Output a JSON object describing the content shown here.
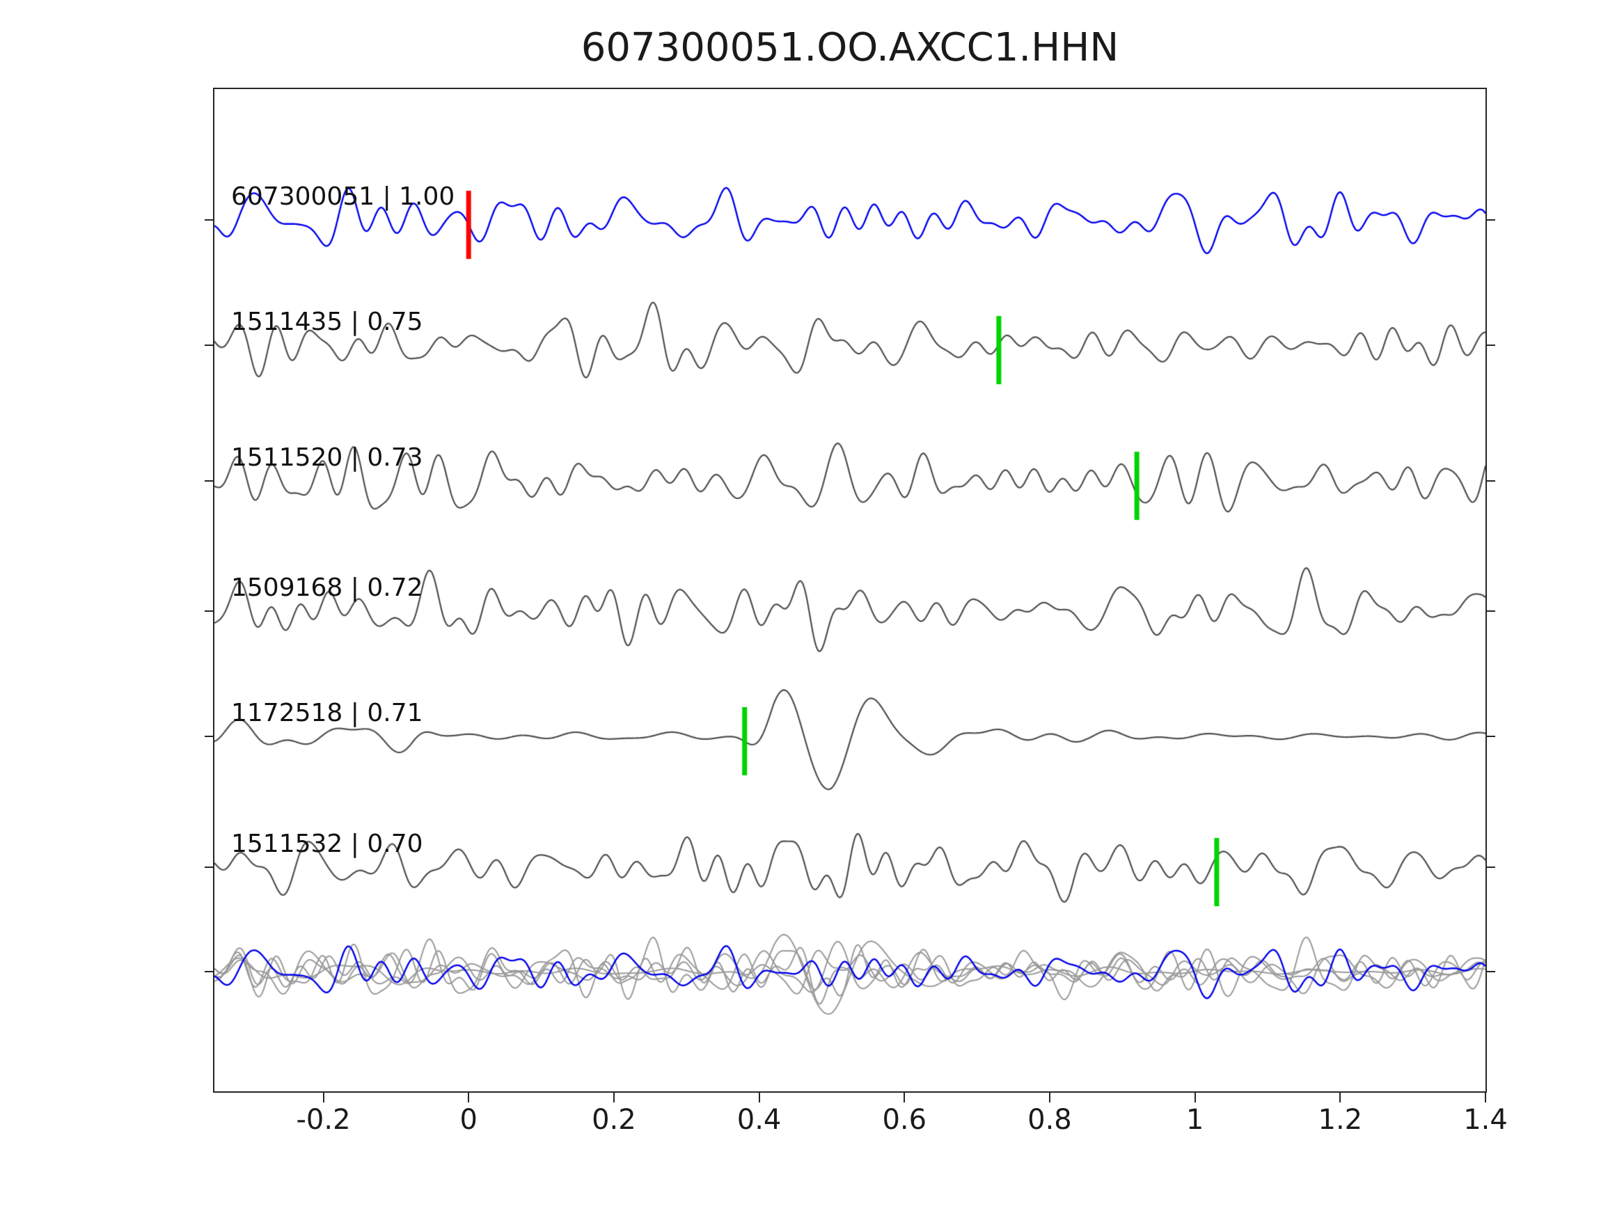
{
  "chart_data": {
    "type": "line",
    "title": "607300051.OO.AXCC1.HHN",
    "xlim": [
      -0.35,
      1.4
    ],
    "grid": false,
    "xticks": [
      {
        "value": -0.2,
        "label": "-0.2"
      },
      {
        "value": 0,
        "label": "0"
      },
      {
        "value": 0.2,
        "label": "0.2"
      },
      {
        "value": 0.4,
        "label": "0.4"
      },
      {
        "value": 0.6,
        "label": "0.6"
      },
      {
        "value": 0.8,
        "label": "0.8"
      },
      {
        "value": 1,
        "label": "1"
      },
      {
        "value": 1.2,
        "label": "1.2"
      },
      {
        "value": 1.4,
        "label": "1.4"
      }
    ],
    "traces": [
      {
        "id": "607300051",
        "correlation": "1.00",
        "label": "607300051 | 1.00",
        "color": "#0000ee",
        "seed": 101,
        "amp": 18,
        "band": [
          5,
          26
        ],
        "envelope": [
          [
            -0.35,
            1
          ],
          [
            0.42,
            1
          ],
          [
            0.48,
            1.6
          ],
          [
            0.56,
            1.6
          ],
          [
            0.64,
            1
          ],
          [
            1.4,
            1
          ]
        ],
        "pick": {
          "x": 0.0,
          "color": "#ff0000"
        }
      },
      {
        "id": "1511435",
        "correlation": "0.75",
        "label": "1511435 | 0.75",
        "color": "#4d4d4d",
        "seed": 202,
        "amp": 18,
        "band": [
          5,
          28
        ],
        "envelope": [
          [
            -0.35,
            1
          ],
          [
            1.4,
            1
          ]
        ],
        "pick": {
          "x": 0.73,
          "color": "#00d400"
        }
      },
      {
        "id": "1511520",
        "correlation": "0.73",
        "label": "1511520 | 0.73",
        "color": "#4d4d4d",
        "seed": 303,
        "amp": 18,
        "band": [
          5,
          27
        ],
        "envelope": [
          [
            -0.35,
            1
          ],
          [
            -0.2,
            1.4
          ],
          [
            -0.1,
            1
          ],
          [
            1.4,
            1
          ]
        ],
        "pick": {
          "x": 0.92,
          "color": "#00d400"
        }
      },
      {
        "id": "1509168",
        "correlation": "0.72",
        "label": "1509168 | 0.72",
        "color": "#4d4d4d",
        "seed": 404,
        "amp": 18,
        "band": [
          5,
          28
        ],
        "envelope": [
          [
            -0.35,
            1
          ],
          [
            0.12,
            1
          ],
          [
            0.17,
            1.7
          ],
          [
            0.23,
            1
          ],
          [
            1.4,
            1
          ]
        ],
        "pick": null
      },
      {
        "id": "1172518",
        "correlation": "0.71",
        "label": "1172518 | 0.71",
        "color": "#4d4d4d",
        "seed": 505,
        "amp": 17,
        "band": [
          6,
          16
        ],
        "envelope": [
          [
            -0.35,
            0.9
          ],
          [
            -0.08,
            0.7
          ],
          [
            -0.02,
            0.12
          ],
          [
            0.36,
            0.1
          ],
          [
            0.42,
            1.5
          ],
          [
            0.5,
            2.0
          ],
          [
            0.62,
            1.7
          ],
          [
            0.75,
            0.6
          ],
          [
            0.85,
            0.22
          ],
          [
            1.4,
            0.22
          ]
        ],
        "pick": {
          "x": 0.38,
          "color": "#00d400"
        }
      },
      {
        "id": "1511532",
        "correlation": "0.70",
        "label": "1511532 | 0.70",
        "color": "#4d4d4d",
        "seed": 606,
        "amp": 18,
        "band": [
          5,
          27
        ],
        "envelope": [
          [
            -0.35,
            1
          ],
          [
            1.4,
            1
          ]
        ],
        "pick": {
          "x": 1.03,
          "color": "#00d400"
        }
      }
    ],
    "overlay": {
      "description": "All traces overlaid at bottom: matches in gray, template in blue",
      "gray_color": "#999999",
      "blue_color": "#0000ee",
      "amp_scale": 0.8
    }
  },
  "colors": {
    "template_blue": "#0000ee",
    "match_gray": "#4d4d4d",
    "overlay_gray": "#999999",
    "pick_red": "#ff0000",
    "pick_green": "#00d400",
    "axis": "#262626",
    "background": "#ffffff"
  }
}
